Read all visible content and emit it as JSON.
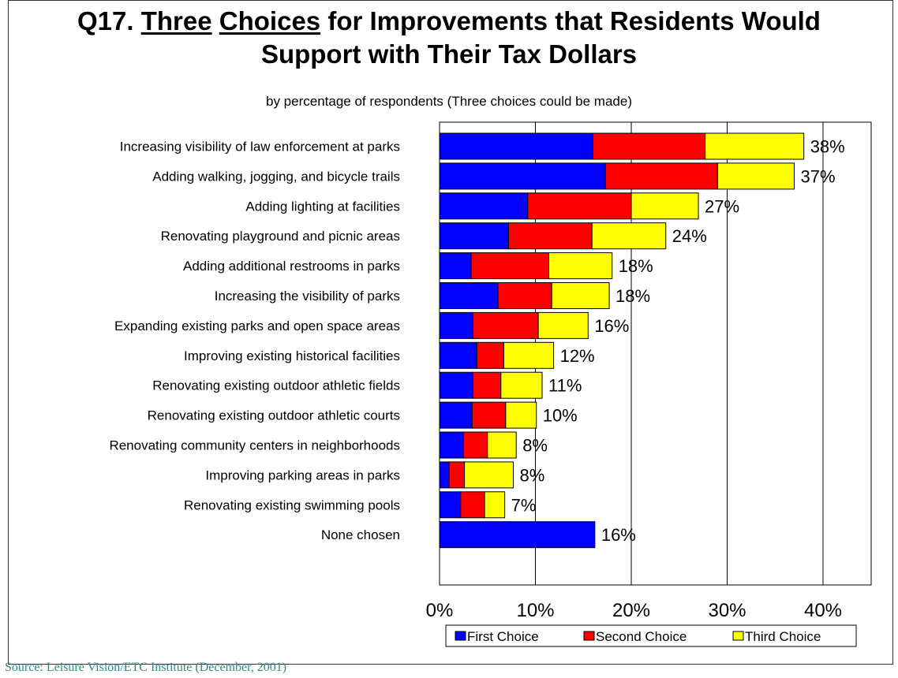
{
  "title": {
    "prefix": "Q17.",
    "underlined1": "Three",
    "underlined2": "Choices",
    "rest": "for Improvements that Residents Would",
    "line2": "Support with Their Tax Dollars"
  },
  "subtitle": "by percentage of respondents (Three choices could be made)",
  "source": "Source:  Leisure Vision/ETC Institute (December, 2001)",
  "chart_data": {
    "type": "bar",
    "orientation": "horizontal",
    "stacked": true,
    "categories": [
      "Increasing visibility of law enforcement at parks",
      "Adding walking, jogging, and bicycle trails",
      "Adding lighting at facilities",
      "Renovating playground and picnic areas",
      "Adding additional restrooms in parks",
      "Increasing the visibility of parks",
      "Expanding existing parks and open space areas",
      "Improving existing historical facilities",
      "Renovating existing outdoor athletic fields",
      "Renovating existing outdoor athletic courts",
      "Renovating community centers in neighborhoods",
      "Improving parking areas in parks",
      "Renovating existing swimming pools",
      "None chosen"
    ],
    "series": [
      {
        "name": "First Choice",
        "color": "#0000ff",
        "values": [
          16,
          17.3,
          9.2,
          7.2,
          3.3,
          6.1,
          3.5,
          3.9,
          3.5,
          3.4,
          2.5,
          1.0,
          2.2,
          16.2
        ]
      },
      {
        "name": "Second Choice",
        "color": "#ff0000",
        "values": [
          11.7,
          11.7,
          10.8,
          8.7,
          8.1,
          5.6,
          6.8,
          2.8,
          2.9,
          3.5,
          2.5,
          1.6,
          2.5,
          0
        ]
      },
      {
        "name": "Third Choice",
        "color": "#ffff00",
        "values": [
          10.3,
          8.0,
          7.0,
          7.7,
          6.6,
          6.0,
          5.2,
          5.2,
          4.3,
          3.2,
          3.0,
          5.1,
          2.1,
          0
        ]
      }
    ],
    "totals_labels": [
      "38%",
      "37%",
      "27%",
      "24%",
      "18%",
      "18%",
      "16%",
      "12%",
      "11%",
      "10%",
      "8%",
      "8%",
      "7%",
      "16%"
    ],
    "x_ticks": [
      "0%",
      "10%",
      "20%",
      "30%",
      "40%"
    ],
    "xlim": [
      0,
      45
    ],
    "grid": true,
    "legend_position": "bottom"
  }
}
